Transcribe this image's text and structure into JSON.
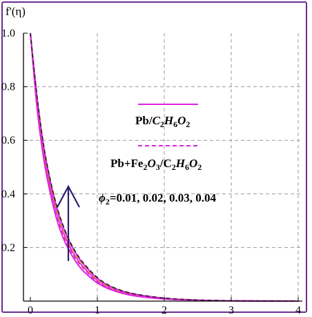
{
  "chart_data": {
    "type": "line",
    "title": "",
    "ylabel": "f'(η)",
    "xlabel": "",
    "xlim": [
      0,
      4
    ],
    "ylim": [
      0,
      1.0
    ],
    "x_ticks": [
      "0",
      "1",
      "2",
      "3",
      "4"
    ],
    "y_ticks": [
      "0.2",
      "0.4",
      "0.6",
      "0.8",
      "1.0"
    ],
    "grid": true,
    "legend_placement": "center-right",
    "legend": [
      {
        "label_plain": "Pb/",
        "label_math": "C2H6O2",
        "style": "solid",
        "color": "#e020e0"
      },
      {
        "label_plain": "Pb+Fe",
        "label_math": "2O3/C2H6O2",
        "style": "dashed",
        "color": "#e020e0"
      }
    ],
    "legend_rendered": {
      "l1_a": "Pb/",
      "l1_b": "C",
      "l1_c": "2",
      "l1_d": "H",
      "l1_e": "6",
      "l1_f": "O",
      "l1_g": "2",
      "l2_a": "Pb+Fe",
      "l2_b": "2",
      "l2_c": "O",
      "l2_d": "3",
      "l2_e": "/C",
      "l2_f": "2",
      "l2_g": "H",
      "l2_h": "6",
      "l2_i": "O",
      "l2_j": "2"
    },
    "annotation": {
      "symbol": "ϕ",
      "sub": "2",
      "text": "=0.01, 0.02, 0.03, 0.04",
      "arrow": "up"
    },
    "x": [
      0,
      0.1,
      0.2,
      0.3,
      0.4,
      0.5,
      0.6,
      0.7,
      0.8,
      1.0,
      1.2,
      1.5,
      2.0,
      2.5,
      3.0,
      3.5,
      4.0
    ],
    "series": [
      {
        "style": "solid",
        "color": "#e020e0",
        "values": [
          1.0,
          0.72,
          0.53,
          0.4,
          0.3,
          0.23,
          0.18,
          0.14,
          0.11,
          0.068,
          0.043,
          0.022,
          0.008,
          0.003,
          0.001,
          0.0004,
          0.0001
        ]
      },
      {
        "style": "dashed",
        "color": "#e020e0",
        "values": [
          1.0,
          0.73,
          0.54,
          0.41,
          0.31,
          0.24,
          0.19,
          0.15,
          0.12,
          0.072,
          0.046,
          0.024,
          0.009,
          0.003,
          0.001,
          0.0004,
          0.0001
        ]
      },
      {
        "style": "solid",
        "color": "#e020e0",
        "values": [
          1.0,
          0.745,
          0.555,
          0.425,
          0.325,
          0.252,
          0.198,
          0.157,
          0.125,
          0.077,
          0.049,
          0.026,
          0.01,
          0.0035,
          0.0012,
          0.0004,
          0.0001
        ]
      },
      {
        "style": "dashed",
        "color": "#d4a017",
        "values": [
          1.0,
          0.75,
          0.56,
          0.43,
          0.33,
          0.256,
          0.202,
          0.16,
          0.128,
          0.079,
          0.05,
          0.027,
          0.0105,
          0.0037,
          0.0012,
          0.0004,
          0.0001
        ]
      },
      {
        "style": "solid",
        "color": "#e020e0",
        "values": [
          1.0,
          0.76,
          0.575,
          0.445,
          0.345,
          0.27,
          0.213,
          0.17,
          0.136,
          0.085,
          0.054,
          0.029,
          0.011,
          0.004,
          0.0013,
          0.0004,
          0.0001
        ]
      },
      {
        "style": "dashed",
        "color": "#202020",
        "values": [
          1.0,
          0.765,
          0.58,
          0.45,
          0.35,
          0.275,
          0.218,
          0.174,
          0.14,
          0.088,
          0.056,
          0.03,
          0.0115,
          0.0042,
          0.0014,
          0.0004,
          0.0001
        ]
      }
    ]
  }
}
